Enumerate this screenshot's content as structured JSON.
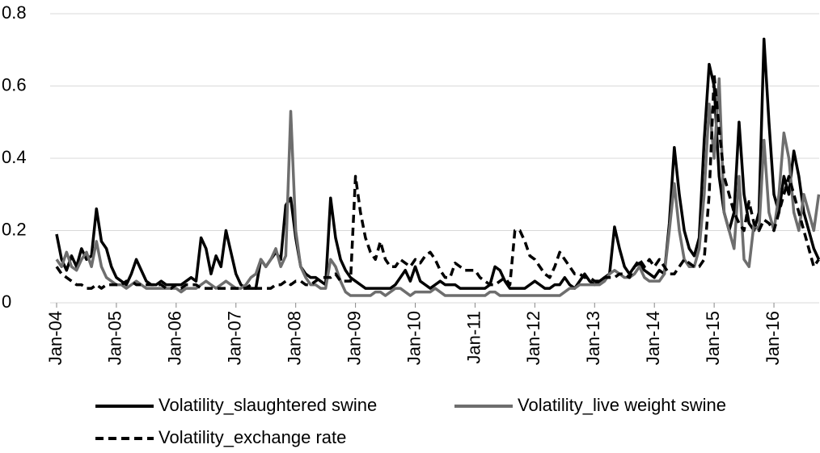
{
  "chart_data": {
    "type": "line",
    "categories": [
      "Jan-04",
      null,
      null,
      null,
      null,
      null,
      null,
      null,
      null,
      null,
      null,
      null,
      "Jan-05",
      null,
      null,
      null,
      null,
      null,
      null,
      null,
      null,
      null,
      null,
      null,
      "Jan-06",
      null,
      null,
      null,
      null,
      null,
      null,
      null,
      null,
      null,
      null,
      null,
      "Jan-07",
      null,
      null,
      null,
      null,
      null,
      null,
      null,
      null,
      null,
      null,
      null,
      "Jan-08",
      null,
      null,
      null,
      null,
      null,
      null,
      null,
      null,
      null,
      null,
      null,
      "Jan-09",
      null,
      null,
      null,
      null,
      null,
      null,
      null,
      null,
      null,
      null,
      null,
      "Jan-10",
      null,
      null,
      null,
      null,
      null,
      null,
      null,
      null,
      null,
      null,
      null,
      "Jan-11",
      null,
      null,
      null,
      null,
      null,
      null,
      null,
      null,
      null,
      null,
      null,
      "Jan-12",
      null,
      null,
      null,
      null,
      null,
      null,
      null,
      null,
      null,
      null,
      null,
      "Jan-13",
      null,
      null,
      null,
      null,
      null,
      null,
      null,
      null,
      null,
      null,
      null,
      "Jan-14",
      null,
      null,
      null,
      null,
      null,
      null,
      null,
      null,
      null,
      null,
      null,
      "Jan-15",
      null,
      null,
      null,
      null,
      null,
      null,
      null,
      null,
      null,
      null,
      null,
      "Jan-16",
      null,
      null,
      null,
      null,
      null,
      null,
      null,
      null,
      null
    ],
    "series": [
      {
        "name": "Volatility_slaughtered swine",
        "color": "#000000",
        "dash": false,
        "values": [
          0.19,
          0.12,
          0.09,
          0.13,
          0.1,
          0.15,
          0.12,
          0.13,
          0.26,
          0.17,
          0.15,
          0.1,
          0.07,
          0.06,
          0.05,
          0.08,
          0.12,
          0.09,
          0.06,
          0.05,
          0.05,
          0.06,
          0.05,
          0.05,
          0.05,
          0.05,
          0.06,
          0.07,
          0.06,
          0.18,
          0.15,
          0.08,
          0.13,
          0.1,
          0.2,
          0.14,
          0.08,
          0.05,
          0.04,
          0.04,
          0.04,
          0.12,
          0.1,
          0.12,
          0.14,
          0.12,
          0.27,
          0.29,
          0.18,
          0.1,
          0.08,
          0.07,
          0.07,
          0.06,
          0.05,
          0.29,
          0.18,
          0.12,
          0.09,
          0.07,
          0.06,
          0.05,
          0.04,
          0.04,
          0.04,
          0.04,
          0.04,
          0.04,
          0.05,
          0.07,
          0.09,
          0.06,
          0.1,
          0.06,
          0.05,
          0.04,
          0.05,
          0.06,
          0.05,
          0.05,
          0.05,
          0.04,
          0.04,
          0.04,
          0.04,
          0.04,
          0.04,
          0.05,
          0.1,
          0.09,
          0.06,
          0.04,
          0.04,
          0.04,
          0.04,
          0.05,
          0.06,
          0.05,
          0.04,
          0.04,
          0.05,
          0.05,
          0.07,
          0.05,
          0.04,
          0.06,
          0.08,
          0.06,
          0.05,
          0.06,
          0.07,
          0.08,
          0.21,
          0.15,
          0.1,
          0.08,
          0.1,
          0.11,
          0.09,
          0.08,
          0.07,
          0.09,
          0.08,
          0.22,
          0.43,
          0.3,
          0.2,
          0.15,
          0.13,
          0.18,
          0.45,
          0.66,
          0.6,
          0.35,
          0.25,
          0.2,
          0.25,
          0.5,
          0.3,
          0.22,
          0.2,
          0.25,
          0.73,
          0.5,
          0.3,
          0.25,
          0.35,
          0.3,
          0.42,
          0.35,
          0.25,
          0.2,
          0.15,
          0.12
        ]
      },
      {
        "name": "Volatility_live weight swine",
        "color": "#6e6e6e",
        "dash": false,
        "values": [
          0.12,
          0.1,
          0.14,
          0.1,
          0.09,
          0.12,
          0.14,
          0.1,
          0.17,
          0.1,
          0.07,
          0.06,
          0.05,
          0.05,
          0.04,
          0.05,
          0.06,
          0.05,
          0.04,
          0.04,
          0.04,
          0.04,
          0.04,
          0.04,
          0.04,
          0.03,
          0.04,
          0.04,
          0.04,
          0.05,
          0.06,
          0.05,
          0.04,
          0.05,
          0.06,
          0.05,
          0.04,
          0.04,
          0.05,
          0.07,
          0.08,
          0.12,
          0.1,
          0.12,
          0.15,
          0.1,
          0.13,
          0.53,
          0.2,
          0.1,
          0.07,
          0.05,
          0.05,
          0.04,
          0.04,
          0.12,
          0.1,
          0.06,
          0.03,
          0.02,
          0.02,
          0.02,
          0.02,
          0.02,
          0.03,
          0.03,
          0.02,
          0.03,
          0.04,
          0.04,
          0.03,
          0.02,
          0.03,
          0.03,
          0.03,
          0.03,
          0.04,
          0.03,
          0.02,
          0.02,
          0.02,
          0.02,
          0.02,
          0.02,
          0.02,
          0.02,
          0.02,
          0.03,
          0.03,
          0.02,
          0.02,
          0.02,
          0.02,
          0.02,
          0.02,
          0.02,
          0.02,
          0.02,
          0.02,
          0.02,
          0.02,
          0.02,
          0.03,
          0.04,
          0.04,
          0.05,
          0.05,
          0.05,
          0.05,
          0.05,
          0.06,
          0.08,
          0.09,
          0.08,
          0.07,
          0.07,
          0.08,
          0.1,
          0.07,
          0.06,
          0.06,
          0.06,
          0.08,
          0.2,
          0.33,
          0.2,
          0.12,
          0.1,
          0.1,
          0.15,
          0.3,
          0.55,
          0.4,
          0.62,
          0.25,
          0.2,
          0.15,
          0.35,
          0.12,
          0.1,
          0.22,
          0.2,
          0.45,
          0.25,
          0.2,
          0.3,
          0.47,
          0.4,
          0.25,
          0.2,
          0.3,
          0.25,
          0.2,
          0.3
        ]
      },
      {
        "name": "Volatility_exchange rate",
        "color": "#000000",
        "dash": true,
        "values": [
          0.1,
          0.08,
          0.07,
          0.06,
          0.05,
          0.05,
          0.04,
          0.04,
          0.05,
          0.04,
          0.05,
          0.05,
          0.05,
          0.05,
          0.06,
          0.06,
          0.05,
          0.05,
          0.05,
          0.05,
          0.05,
          0.05,
          0.04,
          0.04,
          0.05,
          0.04,
          0.05,
          0.05,
          0.05,
          0.04,
          0.04,
          0.04,
          0.04,
          0.04,
          0.04,
          0.04,
          0.04,
          0.04,
          0.04,
          0.05,
          0.04,
          0.04,
          0.04,
          0.04,
          0.05,
          0.05,
          0.06,
          0.05,
          0.06,
          0.06,
          0.05,
          0.05,
          0.06,
          0.07,
          0.07,
          0.07,
          0.08,
          0.06,
          0.06,
          0.06,
          0.35,
          0.25,
          0.18,
          0.14,
          0.12,
          0.17,
          0.12,
          0.1,
          0.1,
          0.12,
          0.11,
          0.1,
          0.12,
          0.11,
          0.13,
          0.14,
          0.12,
          0.09,
          0.07,
          0.07,
          0.11,
          0.1,
          0.09,
          0.09,
          0.09,
          0.07,
          0.06,
          0.05,
          0.05,
          0.06,
          0.07,
          0.05,
          0.2,
          0.2,
          0.17,
          0.13,
          0.12,
          0.1,
          0.08,
          0.07,
          0.1,
          0.14,
          0.12,
          0.1,
          0.08,
          0.08,
          0.07,
          0.07,
          0.06,
          0.06,
          0.07,
          0.07,
          0.07,
          0.08,
          0.08,
          0.07,
          0.1,
          0.12,
          0.1,
          0.12,
          0.1,
          0.12,
          0.1,
          0.08,
          0.08,
          0.1,
          0.12,
          0.11,
          0.1,
          0.1,
          0.12,
          0.3,
          0.63,
          0.48,
          0.35,
          0.3,
          0.25,
          0.22,
          0.2,
          0.28,
          0.22,
          0.2,
          0.23,
          0.22,
          0.2,
          0.25,
          0.3,
          0.35,
          0.3,
          0.25,
          0.2,
          0.15,
          0.1,
          0.12
        ]
      }
    ],
    "ylim": [
      0,
      0.8
    ],
    "yticks": [
      0,
      0.2,
      0.4,
      0.6,
      0.8
    ],
    "grid": true
  }
}
